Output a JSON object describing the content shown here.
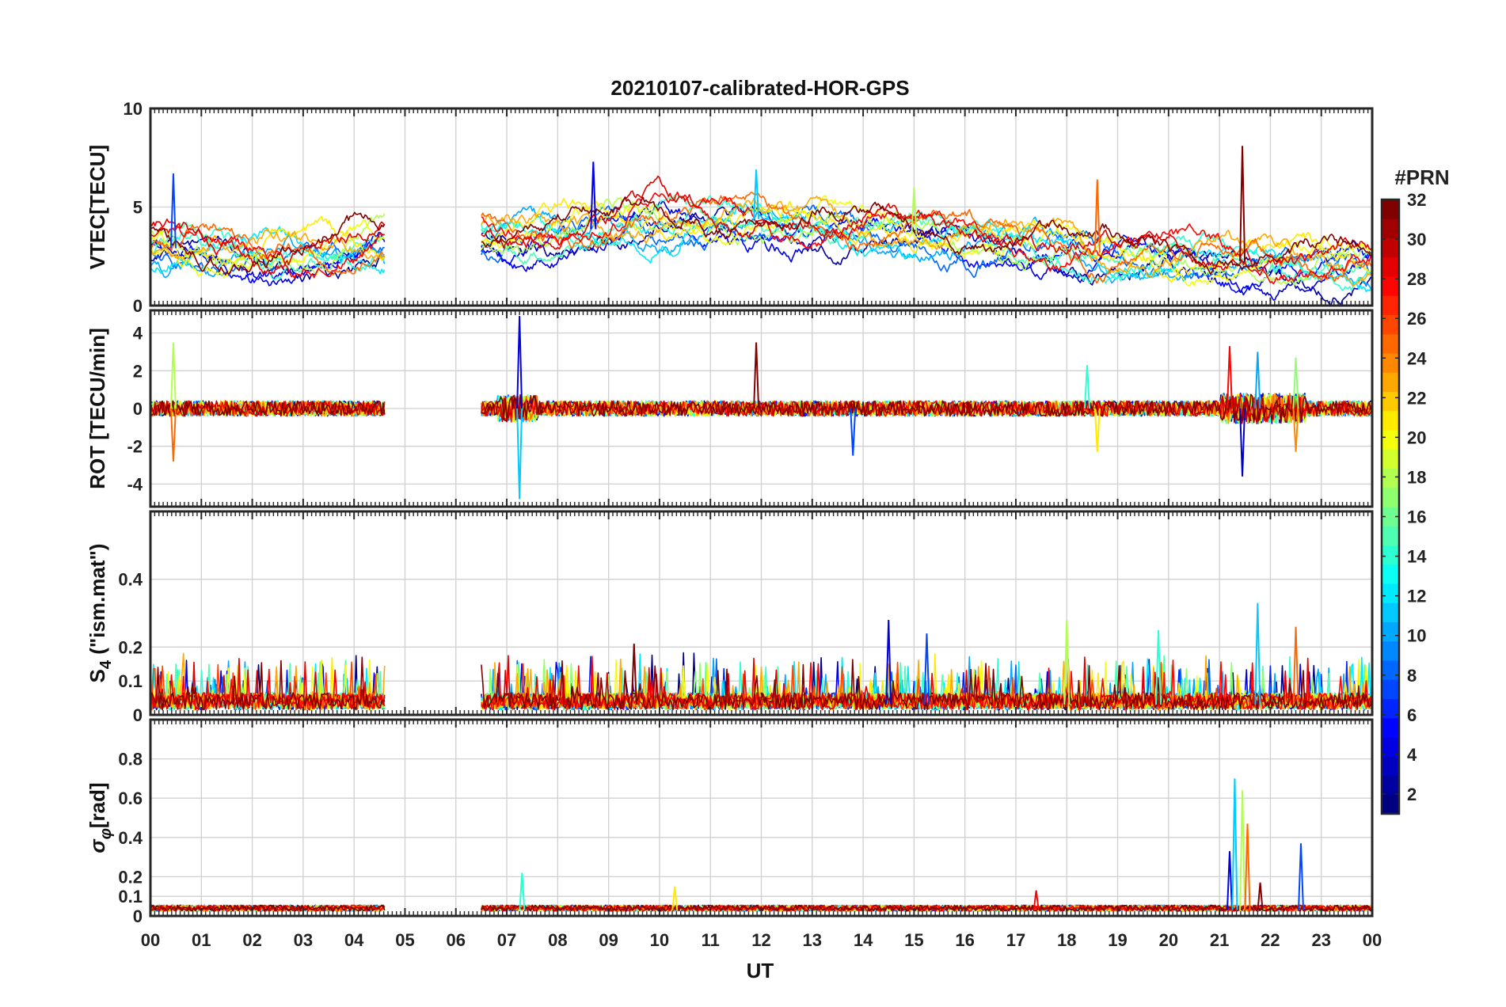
{
  "chart_data": {
    "type": "line",
    "title": "20210107-calibrated-HOR-GPS",
    "xlabel": "UT",
    "x_range_hours": [
      0,
      24
    ],
    "x_tick_labels": [
      "00",
      "01",
      "02",
      "03",
      "04",
      "05",
      "06",
      "07",
      "08",
      "09",
      "10",
      "11",
      "12",
      "13",
      "14",
      "15",
      "16",
      "17",
      "18",
      "19",
      "20",
      "21",
      "22",
      "23",
      "00"
    ],
    "data_gap_hours": [
      4.6,
      6.5
    ],
    "colorbar": {
      "title": "#PRN",
      "range": [
        1,
        32
      ],
      "tick_labels": [
        "2",
        "4",
        "6",
        "8",
        "10",
        "12",
        "14",
        "16",
        "18",
        "20",
        "22",
        "24",
        "26",
        "28",
        "30",
        "32"
      ],
      "colormap": "jet"
    },
    "panels": [
      {
        "id": "vtec",
        "ylabel": "VTEC[TECU]",
        "ylim": [
          0,
          10
        ],
        "ytick_values": [
          0,
          5,
          10
        ],
        "ytick_labels": [
          "0",
          "5",
          "10"
        ],
        "base": [
          [
            0,
            3.0
          ],
          [
            1,
            2.8
          ],
          [
            2,
            2.5
          ],
          [
            3,
            2.6
          ],
          [
            4,
            2.8
          ],
          [
            4.6,
            3.0
          ],
          [
            6.5,
            3.6
          ],
          [
            8,
            3.7
          ],
          [
            10,
            4.2
          ],
          [
            12,
            4.4
          ],
          [
            14,
            3.8
          ],
          [
            16,
            3.4
          ],
          [
            18,
            3.0
          ],
          [
            19,
            2.5
          ],
          [
            21,
            2.3
          ],
          [
            22,
            2.2
          ],
          [
            24,
            2.0
          ]
        ],
        "spikes": [
          [
            8.7,
            7.3
          ],
          [
            11.9,
            6.9
          ],
          [
            15.0,
            6.0
          ],
          [
            18.6,
            6.4
          ],
          [
            21.45,
            8.1
          ],
          [
            0.45,
            6.7
          ]
        ]
      },
      {
        "id": "rot",
        "ylabel": "ROT [TECU/min]",
        "ylim": [
          -5.2,
          5.2
        ],
        "ytick_values": [
          -4,
          -2,
          0,
          2,
          4
        ],
        "ytick_labels": [
          "-4",
          "-2",
          "0",
          "2",
          "4"
        ],
        "spikes": [
          [
            7.25,
            4.9
          ],
          [
            7.25,
            -4.8
          ],
          [
            0.45,
            3.5
          ],
          [
            0.45,
            -2.8
          ],
          [
            11.9,
            3.5
          ],
          [
            13.8,
            -2.5
          ],
          [
            18.4,
            2.3
          ],
          [
            18.6,
            -2.3
          ],
          [
            21.2,
            3.3
          ],
          [
            21.45,
            -3.6
          ],
          [
            21.75,
            3.0
          ],
          [
            22.5,
            2.7
          ],
          [
            22.5,
            -2.3
          ]
        ]
      },
      {
        "id": "s4",
        "ylabel": "S4 (\"ism.mat\")",
        "ylabel_main": "S",
        "ylabel_sub": "4",
        "ylabel_rest": " (\"ism.mat\")",
        "ylim": [
          0,
          0.6
        ],
        "ytick_values": [
          0,
          0.1,
          0.2,
          0.4
        ],
        "ytick_labels": [
          "0",
          "0.1",
          "0.2",
          "0.4"
        ],
        "spikes": [
          [
            14.5,
            0.28
          ],
          [
            21.75,
            0.33
          ],
          [
            18.0,
            0.28
          ],
          [
            22.5,
            0.26
          ],
          [
            9.5,
            0.21
          ],
          [
            15.25,
            0.24
          ],
          [
            19.8,
            0.25
          ]
        ]
      },
      {
        "id": "sigma",
        "ylabel": "σφ [rad]",
        "ylabel_main": "σ",
        "ylabel_sub": "φ",
        "ylabel_rest": "[rad]",
        "ylim": [
          0,
          1.0
        ],
        "ytick_values": [
          0,
          0.1,
          0.2,
          0.4,
          0.6,
          0.8
        ],
        "ytick_labels": [
          "0",
          "0.1",
          "0.2",
          "0.4",
          "0.6",
          "0.8"
        ],
        "spikes": [
          [
            21.2,
            0.33
          ],
          [
            21.3,
            0.7
          ],
          [
            21.45,
            0.64
          ],
          [
            21.55,
            0.47
          ],
          [
            21.8,
            0.17
          ],
          [
            22.6,
            0.37
          ],
          [
            7.3,
            0.22
          ],
          [
            10.3,
            0.15
          ],
          [
            17.4,
            0.13
          ]
        ]
      }
    ]
  }
}
